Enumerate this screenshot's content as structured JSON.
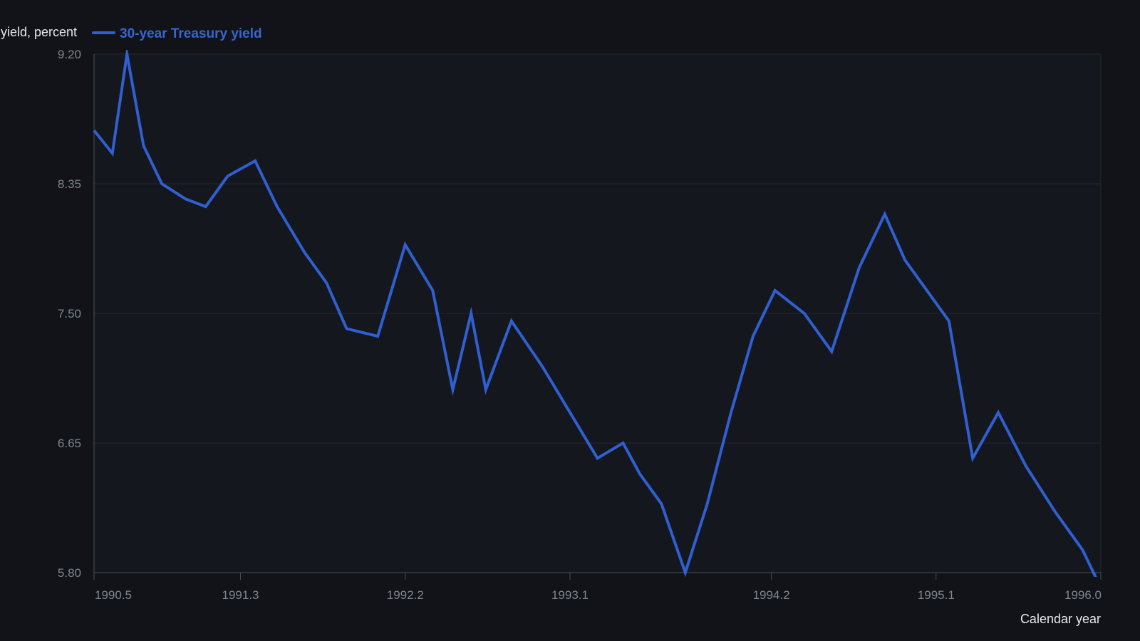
{
  "colors": {
    "background": "#111318",
    "plot_background": "#14171d",
    "grid": "#242830",
    "axis": "#4a4f58",
    "tick_text": "#7f858e",
    "title_text": "#e6e8eb",
    "series": "#2f5fd0"
  },
  "chart_data": {
    "type": "line",
    "ylabel": "yield, percent",
    "xlabel": "Calendar year",
    "grid": true,
    "legend_position": "top-left",
    "xlim": [
      1990.5,
      1996.0
    ],
    "ylim": [
      5.8,
      9.2
    ],
    "yticks": [
      "9.20",
      "8.35",
      "7.50",
      "6.65",
      "5.80"
    ],
    "xticks": [
      "1990.5",
      "1991.3",
      "1992.2",
      "1993.1",
      "1994.2",
      "1995.1",
      "1996.0"
    ],
    "series": [
      {
        "name": "30-year Treasury yield",
        "x": [
          1990.5,
          1990.6,
          1990.68,
          1990.77,
          1990.87,
          1991.0,
          1991.11,
          1991.23,
          1991.38,
          1991.5,
          1991.65,
          1991.77,
          1991.88,
          1992.05,
          1992.2,
          1992.35,
          1992.46,
          1992.56,
          1992.64,
          1992.78,
          1992.95,
          1993.1,
          1993.25,
          1993.39,
          1993.48,
          1993.6,
          1993.73,
          1993.85,
          1993.98,
          1994.1,
          1994.22,
          1994.38,
          1994.53,
          1994.68,
          1994.82,
          1994.93,
          1995.17,
          1995.3,
          1995.44,
          1995.59,
          1995.75,
          1995.9,
          1996.0
        ],
        "y": [
          8.7,
          8.55,
          9.2,
          8.6,
          8.35,
          8.25,
          8.2,
          8.4,
          8.5,
          8.2,
          7.9,
          7.7,
          7.4,
          7.35,
          7.95,
          7.65,
          7.0,
          7.5,
          7.0,
          7.45,
          7.15,
          6.85,
          6.55,
          6.65,
          6.45,
          6.25,
          5.8,
          6.25,
          6.85,
          7.35,
          7.65,
          7.5,
          7.25,
          7.8,
          8.15,
          7.85,
          7.45,
          6.55,
          6.85,
          6.5,
          6.2,
          5.95,
          5.7
        ]
      }
    ]
  }
}
